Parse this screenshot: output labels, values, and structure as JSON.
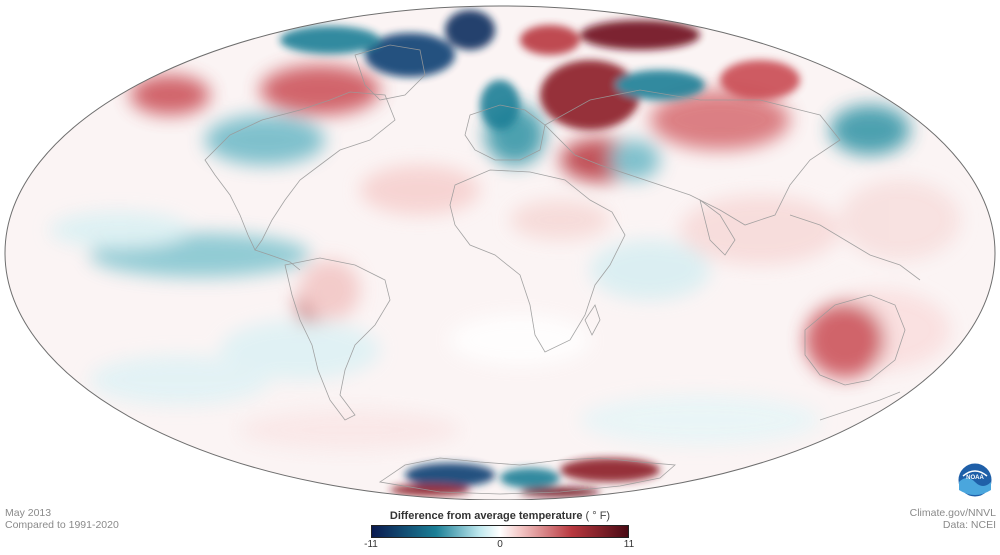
{
  "meta": {
    "date": "May 2013",
    "baseline": "Compared to 1991-2020",
    "source": "Climate.gov/NNVL",
    "data": "Data: NCEI"
  },
  "legend": {
    "title": "Difference from average temperature",
    "unit": "( ° F)",
    "min_label": "-11",
    "zero_label": "0",
    "max_label": "11",
    "colors": [
      "#0a1a4f",
      "#1b7f96",
      "#bfe8ee",
      "#ffffff",
      "#f3c7c6",
      "#b8383f",
      "#4a0a14"
    ]
  },
  "logo": {
    "icon": "noaa-logo",
    "text": "NOAA"
  },
  "map": {
    "projection": "mollweide",
    "variable": "temperature anomaly"
  }
}
